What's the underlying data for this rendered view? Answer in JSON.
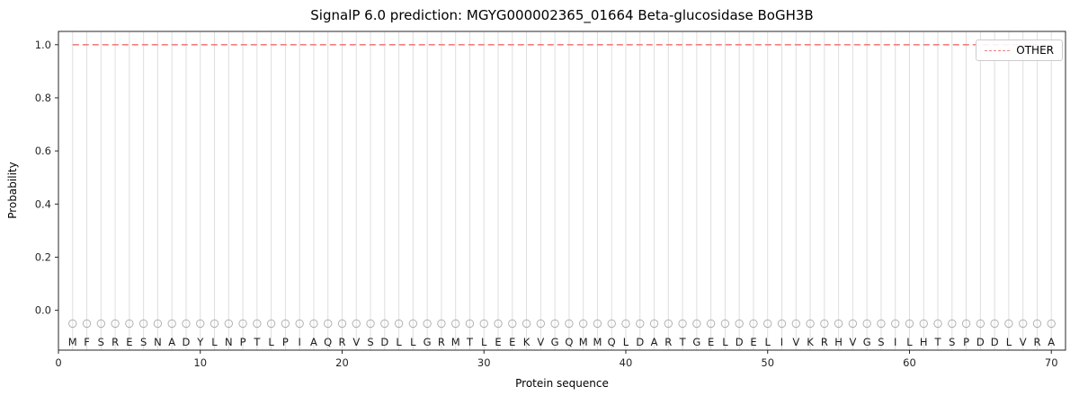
{
  "title": "SignalP 6.0 prediction: MGYG000002365_01664 Beta-glucosidase BoGH3B",
  "legend": {
    "entries": [
      {
        "label": "OTHER",
        "color": "#f67f7f",
        "style": "dashed"
      }
    ],
    "position": "upper right"
  },
  "chart_data": {
    "type": "line",
    "title": "SignalP 6.0 prediction: MGYG000002365_01664 Beta-glucosidase BoGH3B",
    "xlabel": "Protein sequence",
    "ylabel": "Probability",
    "xlim": [
      0,
      71
    ],
    "ylim": [
      -0.15,
      1.05
    ],
    "x_ticks": [
      0,
      10,
      20,
      30,
      40,
      50,
      60,
      70
    ],
    "x_tick_labels": [
      "0",
      "10",
      "20",
      "30",
      "40",
      "50",
      "60",
      "70"
    ],
    "y_ticks": [
      0.0,
      0.2,
      0.4,
      0.6,
      0.8,
      1.0
    ],
    "y_tick_labels": [
      "0.0",
      "0.2",
      "0.4",
      "0.6",
      "0.8",
      "1.0"
    ],
    "grid": "vertical-line-per-residue",
    "legend_position": "upper right",
    "sequence": "MFSRESNADYLNPTLPIAQRVSDLLGRMTLEEKVGQMMQLDARTGELDELIVKRHVGSILHTSPDDLVRA",
    "series": [
      {
        "name": "OTHER",
        "x_start": 1,
        "x_end": 70,
        "value": 1.0,
        "color": "#f67f7f",
        "style": "dashed"
      }
    ],
    "marker_y": -0.05,
    "letter_y": -0.102,
    "colors": {
      "line": "#f67f7f",
      "grid": "#dedede",
      "marker_stroke": "#b0b0b0",
      "letters": "#1a1a1a",
      "spine": "#262626",
      "tick_text": "#262626"
    }
  }
}
